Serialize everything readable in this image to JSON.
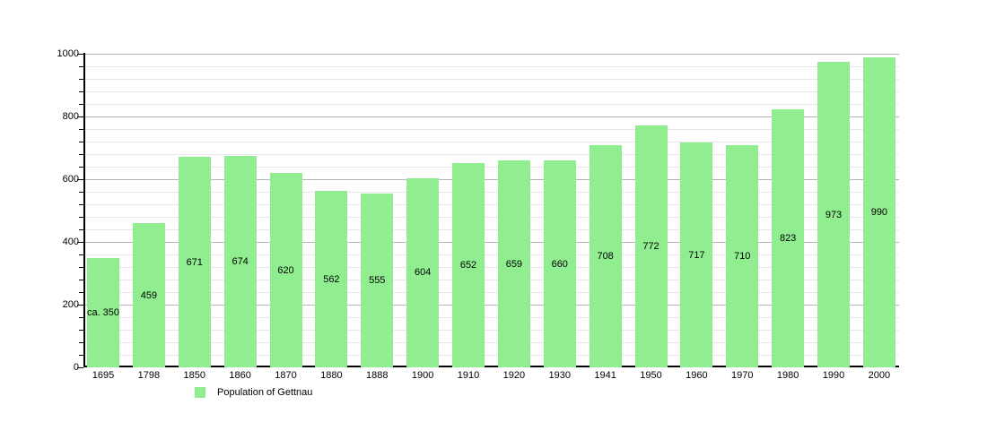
{
  "chart_data": {
    "type": "bar",
    "title": "",
    "xlabel": "",
    "ylabel": "",
    "categories": [
      "1695",
      "1798",
      "1850",
      "1860",
      "1870",
      "1880",
      "1888",
      "1900",
      "1910",
      "1920",
      "1930",
      "1941",
      "1950",
      "1960",
      "1970",
      "1980",
      "1990",
      "2000"
    ],
    "values": [
      350,
      459,
      671,
      674,
      620,
      562,
      555,
      604,
      652,
      659,
      660,
      708,
      772,
      717,
      710,
      823,
      973,
      990
    ],
    "bar_labels": [
      "ca. 350",
      "459",
      "671",
      "674",
      "620",
      "562",
      "555",
      "604",
      "652",
      "659",
      "660",
      "708",
      "772",
      "717",
      "710",
      "823",
      "973",
      "990"
    ],
    "legend": [
      {
        "label": "Population of Gettnau",
        "color": "#90ee90"
      }
    ],
    "legend_position": "bottom-left",
    "ylim": [
      0,
      1000
    ],
    "yticks_major": [
      0,
      200,
      400,
      600,
      800,
      1000
    ],
    "ytick_major_step": 200,
    "ytick_minor_step": 40,
    "grid": true,
    "bar_color": "#90ee90",
    "axis_color": "#000000",
    "major_grid_color": "#b3b3b3",
    "minor_grid_color": "#e7e7e7"
  }
}
